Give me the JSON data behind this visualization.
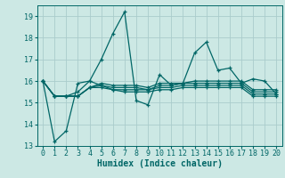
{
  "xlabel": "Humidex (Indice chaleur)",
  "bg_color": "#cce8e4",
  "line_color": "#006666",
  "grid_color": "#aacccc",
  "xlim": [
    -0.5,
    20.5
  ],
  "ylim": [
    13,
    19.5
  ],
  "yticks": [
    13,
    14,
    15,
    16,
    17,
    18,
    19
  ],
  "xticks": [
    0,
    1,
    2,
    3,
    4,
    5,
    6,
    7,
    8,
    9,
    10,
    11,
    12,
    13,
    14,
    15,
    16,
    17,
    18,
    19,
    20
  ],
  "lines": [
    [
      16.0,
      13.2,
      13.7,
      15.9,
      16.0,
      17.0,
      18.2,
      19.2,
      15.1,
      14.9,
      16.3,
      15.8,
      15.9,
      17.3,
      17.8,
      16.5,
      16.6,
      15.9,
      16.1,
      16.0,
      15.4
    ],
    [
      16.0,
      15.3,
      15.3,
      15.3,
      15.7,
      15.7,
      15.6,
      15.6,
      15.6,
      15.6,
      15.7,
      15.7,
      15.8,
      15.8,
      15.8,
      15.8,
      15.8,
      15.8,
      15.4,
      15.4,
      15.4
    ],
    [
      16.0,
      15.3,
      15.3,
      15.3,
      15.7,
      15.8,
      15.7,
      15.7,
      15.7,
      15.6,
      15.8,
      15.8,
      15.9,
      15.9,
      15.9,
      15.9,
      15.9,
      15.9,
      15.5,
      15.5,
      15.5
    ],
    [
      16.0,
      15.3,
      15.3,
      15.3,
      15.7,
      15.9,
      15.8,
      15.8,
      15.8,
      15.7,
      15.9,
      15.9,
      15.9,
      16.0,
      16.0,
      16.0,
      16.0,
      16.0,
      15.6,
      15.6,
      15.6
    ],
    [
      16.0,
      15.3,
      15.3,
      15.5,
      16.0,
      15.8,
      15.6,
      15.5,
      15.5,
      15.5,
      15.6,
      15.6,
      15.7,
      15.7,
      15.7,
      15.7,
      15.7,
      15.7,
      15.3,
      15.3,
      15.3
    ]
  ],
  "marker": "+",
  "markersize": 3,
  "linewidth": 0.9,
  "tick_labelsize": 6,
  "xlabel_fontsize": 7,
  "xlabel_fontweight": "bold"
}
